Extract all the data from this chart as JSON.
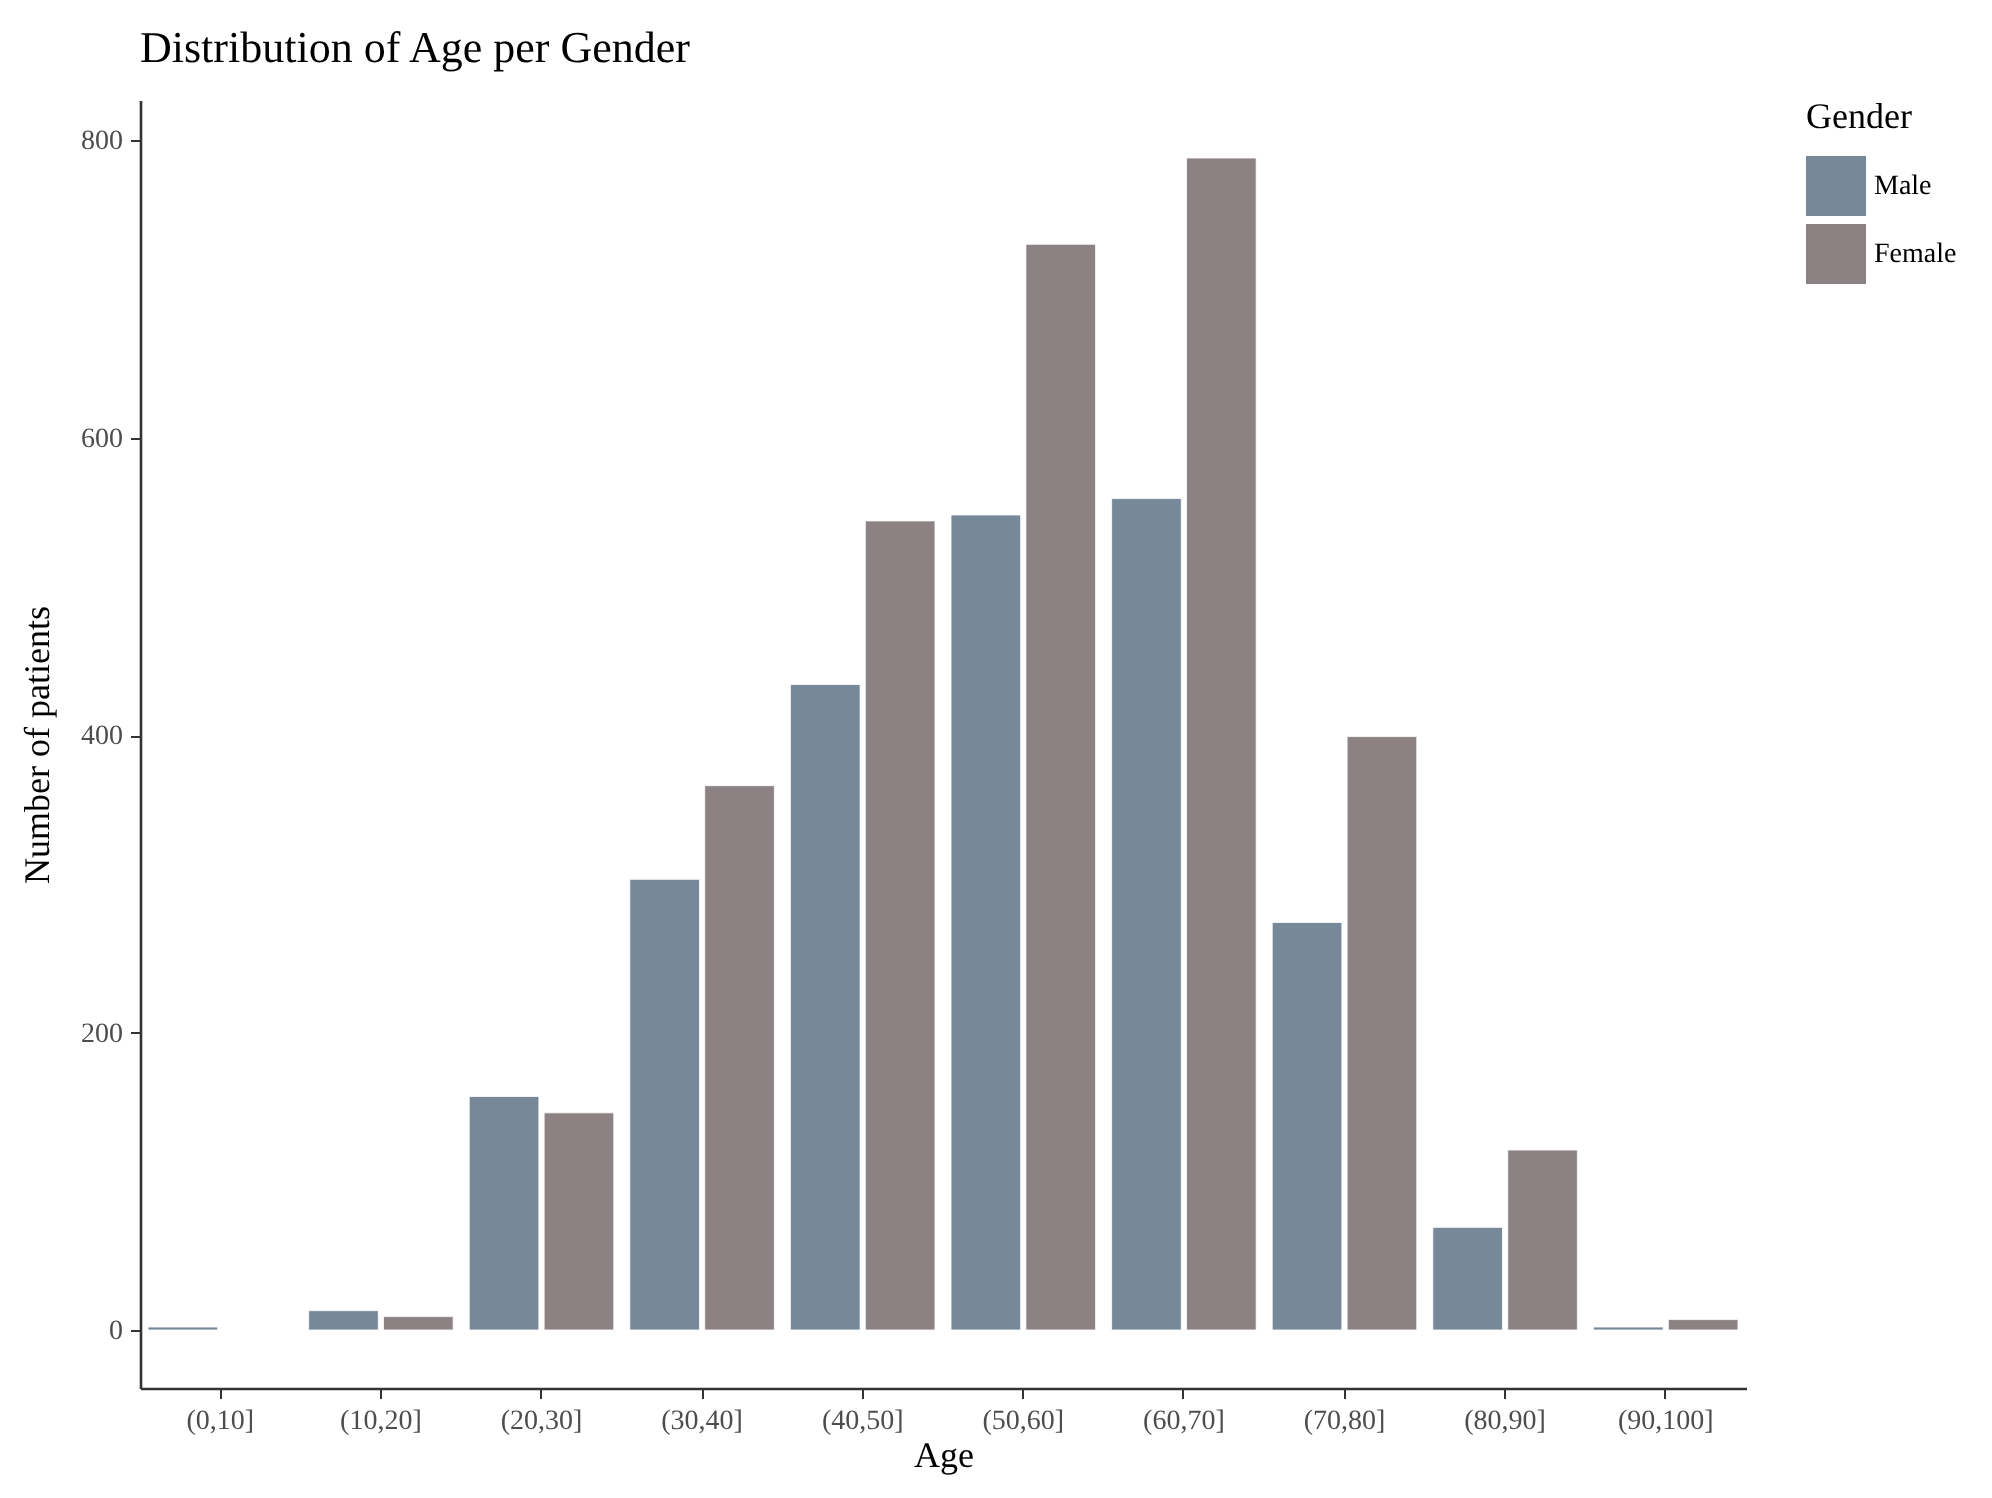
{
  "chart_data": {
    "type": "bar",
    "title": "Distribution of Age per Gender",
    "xlabel": "Age",
    "ylabel": "Number of patients",
    "legend_title": "Gender",
    "categories": [
      "(0,10]",
      "(10,20]",
      "(20,30]",
      "(30,40]",
      "(40,50]",
      "(50,60]",
      "(60,70]",
      "(70,80]",
      "(80,90]",
      "(90,100]"
    ],
    "series": [
      {
        "name": "Male",
        "color": "#778899",
        "values": [
          2,
          13,
          157,
          303,
          434,
          548,
          559,
          274,
          69,
          2
        ]
      },
      {
        "name": "Female",
        "color": "#8c8284",
        "values": [
          null,
          9,
          146,
          366,
          544,
          730,
          788,
          399,
          121,
          7
        ]
      }
    ],
    "ylim": [
      -39,
      827
    ],
    "yticks": [
      0,
      200,
      400,
      600,
      800
    ],
    "grid": false,
    "legend": "right"
  }
}
